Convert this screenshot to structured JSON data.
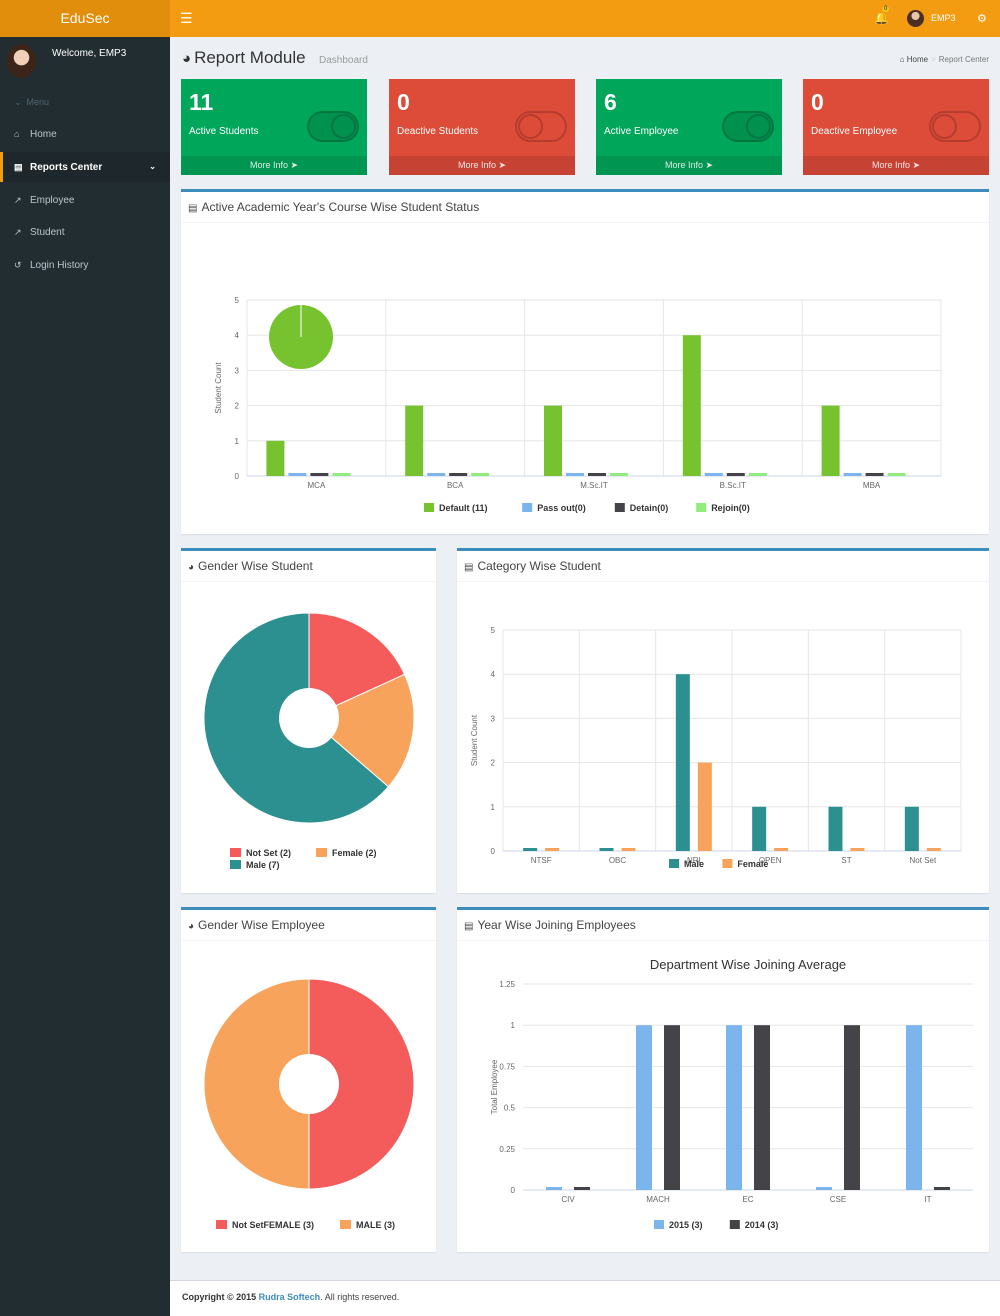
{
  "app": {
    "logo": "EduSec",
    "user": "EMP3",
    "notifications": "0"
  },
  "sidebar": {
    "welcome": "Welcome, EMP3",
    "menu_head": "Menu",
    "items": [
      {
        "label": "Home",
        "icon": "home-icon"
      },
      {
        "label": "Reports Center",
        "icon": "bar-chart-icon",
        "active": true
      },
      {
        "label": "Employee",
        "icon": "line-chart-icon"
      },
      {
        "label": "Student",
        "icon": "line-chart-icon"
      },
      {
        "label": "Login History",
        "icon": "history-icon"
      }
    ]
  },
  "header": {
    "title": "Report Module",
    "subtitle": "Dashboard",
    "crumb_home": "Home",
    "crumb_current": "Report Center"
  },
  "boxes": [
    {
      "value": "11",
      "label": "Active Students",
      "more": "More Info",
      "color": "#00a65a"
    },
    {
      "value": "0",
      "label": "Deactive Students",
      "more": "More Info",
      "color": "#dd4b39"
    },
    {
      "value": "6",
      "label": "Active Employee",
      "more": "More Info",
      "color": "#00a65a"
    },
    {
      "value": "0",
      "label": "Deactive Employee",
      "more": "More Info",
      "color": "#dd4b39"
    }
  ],
  "panels": {
    "course": "Active Academic Year's Course Wise Student Status",
    "gender_student": "Gender Wise Student",
    "category": "Category Wise Student",
    "gender_employee": "Gender Wise Employee",
    "year_joining": "Year Wise Joining Employees"
  },
  "chart_data": [
    {
      "type": "bar",
      "title": "",
      "ylabel": "Student Count",
      "ylim": [
        0,
        5
      ],
      "yticks": [
        "0",
        "1",
        "2",
        "3",
        "4",
        "5"
      ],
      "categories": [
        "MCA",
        "BCA",
        "M.Sc.IT",
        "B.Sc.IT",
        "MBA"
      ],
      "series": [
        {
          "name": "Default (11)",
          "color": "#77c22f",
          "values": [
            1,
            2,
            2,
            4,
            2
          ]
        },
        {
          "name": "Pass out(0)",
          "color": "#7cb5ec",
          "values": [
            0,
            0,
            0,
            0,
            0
          ]
        },
        {
          "name": "Detain(0)",
          "color": "#434348",
          "values": [
            0,
            0,
            0,
            0,
            0
          ]
        },
        {
          "name": "Rejoin(0)",
          "color": "#90ed7d",
          "values": [
            0,
            0,
            0,
            0,
            0
          ]
        }
      ],
      "inset_pie": {
        "color": "#77c22f",
        "values": [
          1
        ]
      }
    },
    {
      "type": "pie",
      "title": "",
      "slices": [
        {
          "name": "Not Set (2)",
          "value": 2,
          "color": "#f45b5b"
        },
        {
          "name": "Female (2)",
          "value": 2,
          "color": "#f7a35c"
        },
        {
          "name": "Male (7)",
          "value": 7,
          "color": "#2b908f"
        }
      ]
    },
    {
      "type": "bar",
      "title": "",
      "ylabel": "Student Count",
      "ylim": [
        0,
        5
      ],
      "yticks": [
        "0",
        "1",
        "2",
        "3",
        "4",
        "5"
      ],
      "categories": [
        "NTSF",
        "OBC",
        "NRI",
        "OPEN",
        "ST",
        "Not Set"
      ],
      "series": [
        {
          "name": "Male",
          "color": "#2b908f",
          "values": [
            0,
            0,
            4,
            1,
            1,
            1
          ]
        },
        {
          "name": "Female",
          "color": "#f7a35c",
          "values": [
            0,
            0,
            2,
            0,
            0,
            0
          ]
        }
      ]
    },
    {
      "type": "pie",
      "title": "",
      "slices": [
        {
          "name": "Not SetFEMALE (3)",
          "value": 3,
          "color": "#f45b5b"
        },
        {
          "name": "MALE (3)",
          "value": 3,
          "color": "#f7a35c"
        }
      ]
    },
    {
      "type": "bar",
      "title": "Department Wise Joining Average",
      "ylabel": "Total Employee",
      "ylim": [
        0,
        1.25
      ],
      "yticks": [
        "0",
        "0.25",
        "0.5",
        "0.75",
        "1",
        "1.25"
      ],
      "categories": [
        "CIV",
        "MACH",
        "EC",
        "CSE",
        "IT"
      ],
      "series": [
        {
          "name": "2015 (3)",
          "color": "#7cb5ec",
          "values": [
            0,
            1,
            1,
            0,
            1
          ]
        },
        {
          "name": "2014 (3)",
          "color": "#434348",
          "values": [
            0,
            1,
            1,
            1,
            0
          ]
        }
      ]
    }
  ],
  "footer": {
    "prefix": "Copyright © 2015",
    "brand": "Rudra Softech",
    "suffix": ". All rights reserved."
  }
}
